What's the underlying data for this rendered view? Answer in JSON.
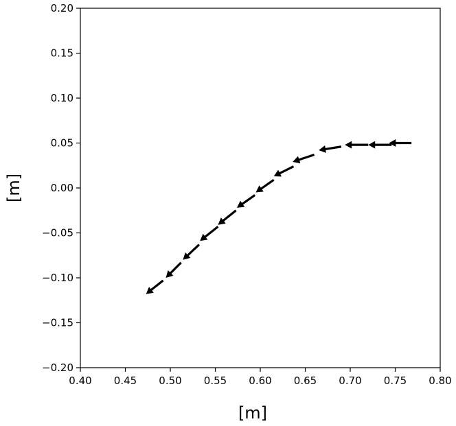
{
  "chart_data": {
    "type": "quiver",
    "title": "",
    "xlabel": "[m]",
    "ylabel": "[m]",
    "xlim": [
      0.4,
      0.8
    ],
    "ylim": [
      -0.2,
      0.2
    ],
    "xticks": [
      "0.40",
      "0.45",
      "0.50",
      "0.55",
      "0.60",
      "0.65",
      "0.70",
      "0.75",
      "0.80"
    ],
    "yticks": [
      "0.20",
      "0.15",
      "0.10",
      "0.05",
      "0.00",
      "−0.05",
      "−0.10",
      "−0.15",
      "−0.20"
    ],
    "grid": false,
    "arrow_color": "#000000",
    "arrows": [
      {
        "x0": 0.768,
        "y0": 0.05,
        "x1": 0.743,
        "y1": 0.05
      },
      {
        "x0": 0.746,
        "y0": 0.048,
        "x1": 0.72,
        "y1": 0.048
      },
      {
        "x0": 0.72,
        "y0": 0.048,
        "x1": 0.694,
        "y1": 0.048
      },
      {
        "x0": 0.69,
        "y0": 0.046,
        "x1": 0.665,
        "y1": 0.042
      },
      {
        "x0": 0.66,
        "y0": 0.037,
        "x1": 0.636,
        "y1": 0.029
      },
      {
        "x0": 0.637,
        "y0": 0.024,
        "x1": 0.615,
        "y1": 0.013
      },
      {
        "x0": 0.615,
        "y0": 0.009,
        "x1": 0.595,
        "y1": -0.005
      },
      {
        "x0": 0.594,
        "y0": -0.008,
        "x1": 0.574,
        "y1": -0.022
      },
      {
        "x0": 0.573,
        "y0": -0.025,
        "x1": 0.553,
        "y1": -0.041
      },
      {
        "x0": 0.553,
        "y0": -0.043,
        "x1": 0.533,
        "y1": -0.059
      },
      {
        "x0": 0.532,
        "y0": -0.063,
        "x1": 0.514,
        "y1": -0.08
      },
      {
        "x0": 0.512,
        "y0": -0.083,
        "x1": 0.495,
        "y1": -0.1
      },
      {
        "x0": 0.492,
        "y0": -0.103,
        "x1": 0.473,
        "y1": -0.118
      }
    ]
  }
}
